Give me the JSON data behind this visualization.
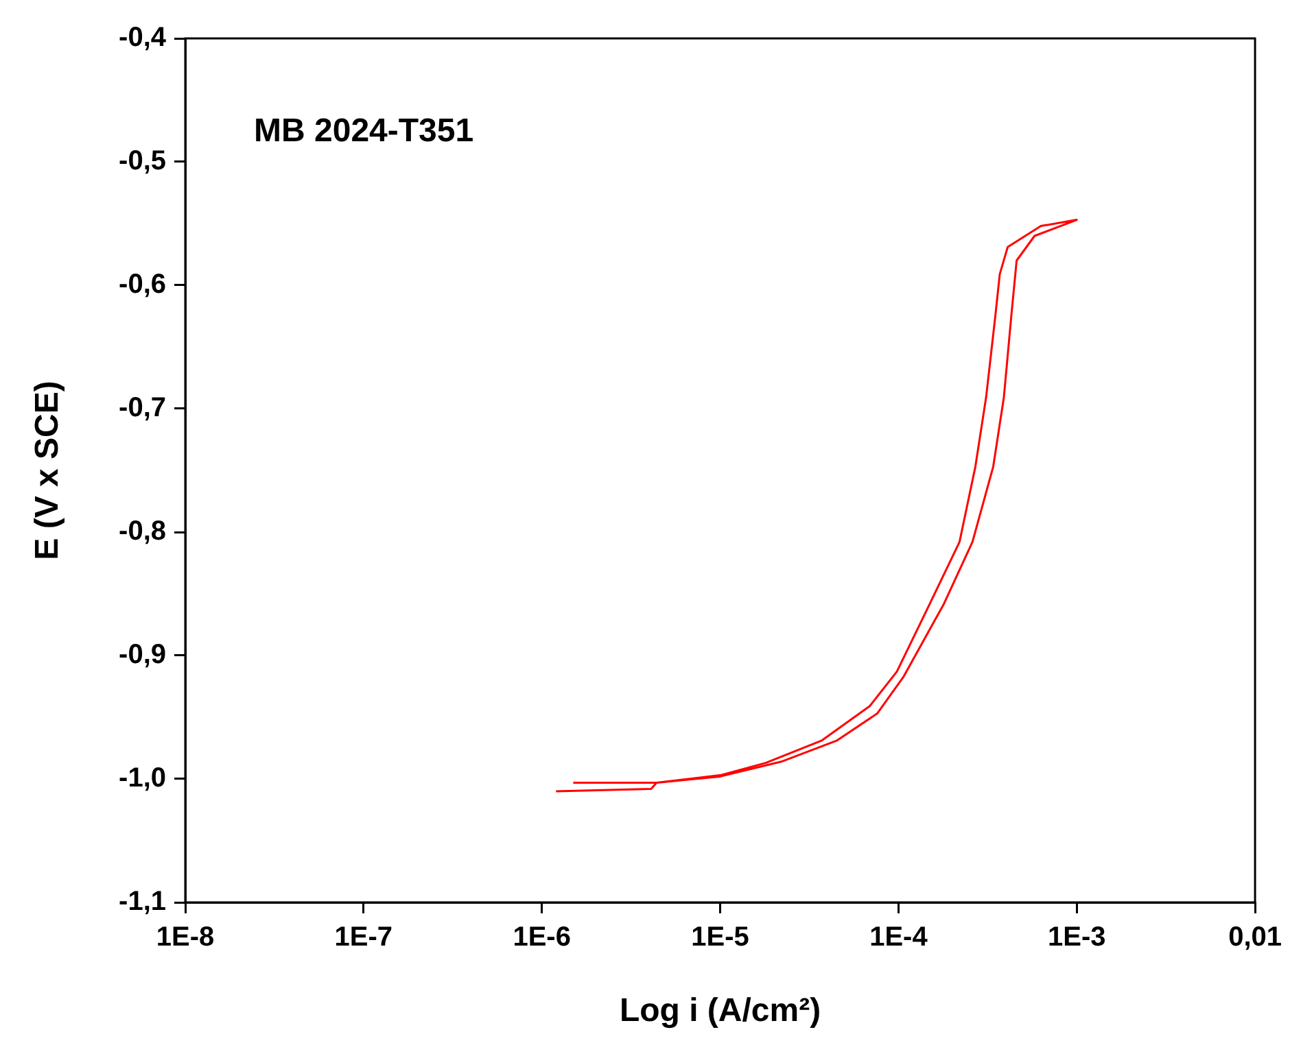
{
  "chart_data": {
    "type": "line",
    "xlabel": "Log i (A/cm²)",
    "ylabel": "E (V x SCE)",
    "annotations": [
      "MB 2024-T351"
    ],
    "log": "x",
    "grid": false,
    "xlim": [
      1e-08,
      0.01
    ],
    "ylim": [
      -1.1,
      -0.4
    ],
    "xticks": [
      {
        "value": 1e-08,
        "label": "1E-8"
      },
      {
        "value": 1e-07,
        "label": "1E-7"
      },
      {
        "value": 1e-06,
        "label": "1E-6"
      },
      {
        "value": 1e-05,
        "label": "1E-5"
      },
      {
        "value": 0.0001,
        "label": "1E-4"
      },
      {
        "value": 0.001,
        "label": "1E-3"
      },
      {
        "value": 0.01,
        "label": "0,01"
      }
    ],
    "yticks": [
      {
        "value": -1.1,
        "label": "-1,1"
      },
      {
        "value": -1.0,
        "label": "-1,0"
      },
      {
        "value": -0.9,
        "label": "-0,9"
      },
      {
        "value": -0.8,
        "label": "-0,8"
      },
      {
        "value": -0.7,
        "label": "-0,7"
      },
      {
        "value": -0.6,
        "label": "-0,6"
      },
      {
        "value": -0.5,
        "label": "-0,5"
      },
      {
        "value": -0.4,
        "label": "-0,4"
      }
    ],
    "color": "#ff0000",
    "x": [
      1.2e-06,
      4.1e-06,
      4.4e-06,
      1e-05,
      2.2e-05,
      4.5e-05,
      7.6e-05,
      0.000107,
      0.00018,
      0.00026,
      0.00034,
      0.00039,
      0.00043,
      0.00046,
      0.00058,
      0.001,
      0.00063,
      0.00041,
      0.00037,
      0.00035,
      0.00031,
      0.00027,
      0.00022,
      0.00015,
      9.8e-05,
      6.9e-05,
      3.7e-05,
      1.8e-05,
      1e-05,
      4.4e-06,
      1.5e-06
    ],
    "values": [
      -1.01,
      -1.008,
      -1.003,
      -0.998,
      -0.986,
      -0.969,
      -0.947,
      -0.917,
      -0.858,
      -0.808,
      -0.747,
      -0.691,
      -0.624,
      -0.58,
      -0.56,
      -0.547,
      -0.552,
      -0.569,
      -0.591,
      -0.624,
      -0.691,
      -0.747,
      -0.808,
      -0.858,
      -0.913,
      -0.941,
      -0.969,
      -0.987,
      -0.997,
      -1.003,
      -1.003
    ]
  }
}
